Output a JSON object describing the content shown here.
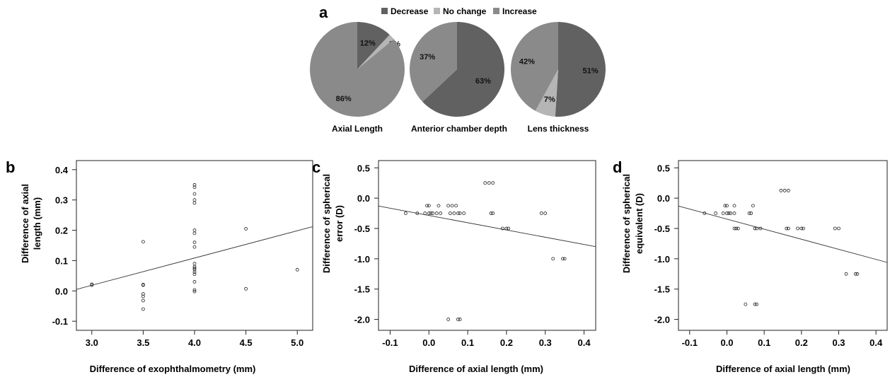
{
  "colors": {
    "decrease": "#616161",
    "no_change": "#b5b5b5",
    "increase": "#8a8a8a",
    "axis": "#222222",
    "marker": "#222222"
  },
  "pie_legend": {
    "entries": [
      {
        "label": "Decrease",
        "color_key": "decrease"
      },
      {
        "label": "No change",
        "color_key": "no_change"
      },
      {
        "label": "Increase",
        "color_key": "increase"
      }
    ]
  },
  "chart_data": [
    {
      "panel": "a",
      "type": "pie",
      "title": "Axial Length",
      "slices": [
        {
          "category": "Decrease",
          "value": 12,
          "label": "12%"
        },
        {
          "category": "No change",
          "value": 2,
          "label": "2%"
        },
        {
          "category": "Increase",
          "value": 86,
          "label": "86%"
        }
      ]
    },
    {
      "panel": "a",
      "type": "pie",
      "title": "Anterior chamber depth",
      "slices": [
        {
          "category": "Decrease",
          "value": 63,
          "label": "63%"
        },
        {
          "category": "No change",
          "value": 0,
          "label": ""
        },
        {
          "category": "Increase",
          "value": 37,
          "label": "37%"
        }
      ]
    },
    {
      "panel": "a",
      "type": "pie",
      "title": "Lens thickness",
      "slices": [
        {
          "category": "Decrease",
          "value": 51,
          "label": "51%"
        },
        {
          "category": "No change",
          "value": 7,
          "label": "7%"
        },
        {
          "category": "Increase",
          "value": 42,
          "label": "42%"
        }
      ]
    },
    {
      "panel": "b",
      "type": "scatter",
      "xlabel": "Difference of exophthalmometry (mm)",
      "ylabel": [
        "Difference of axial",
        "length (mm)"
      ],
      "xlim": [
        2.85,
        5.15
      ],
      "ylim": [
        -0.13,
        0.43
      ],
      "xticks": [
        3.0,
        3.5,
        4.0,
        4.5,
        5.0
      ],
      "xtick_labels": [
        "3.0",
        "3.5",
        "4.0",
        "4.5",
        "5.0"
      ],
      "yticks": [
        -0.1,
        0.0,
        0.1,
        0.2,
        0.3,
        0.4
      ],
      "ytick_labels": [
        "-0.1",
        "0.0",
        "0.1",
        "0.2",
        "0.3",
        "0.4"
      ],
      "points": [
        [
          3.0,
          0.022
        ],
        [
          3.0,
          0.019
        ],
        [
          3.5,
          0.162
        ],
        [
          3.5,
          0.021
        ],
        [
          3.5,
          0.019
        ],
        [
          3.5,
          -0.01
        ],
        [
          3.5,
          -0.018
        ],
        [
          3.5,
          -0.032
        ],
        [
          3.5,
          -0.06
        ],
        [
          4.0,
          0.35
        ],
        [
          4.0,
          0.342
        ],
        [
          4.0,
          0.32
        ],
        [
          4.0,
          0.3
        ],
        [
          4.0,
          0.29
        ],
        [
          4.0,
          0.2
        ],
        [
          4.0,
          0.19
        ],
        [
          4.0,
          0.16
        ],
        [
          4.0,
          0.145
        ],
        [
          4.0,
          0.09
        ],
        [
          4.0,
          0.08
        ],
        [
          4.0,
          0.075
        ],
        [
          4.0,
          0.07
        ],
        [
          4.0,
          0.062
        ],
        [
          4.0,
          0.055
        ],
        [
          4.0,
          0.03
        ],
        [
          4.0,
          0.003
        ],
        [
          4.0,
          -0.002
        ],
        [
          4.5,
          0.205
        ],
        [
          4.5,
          0.007
        ],
        [
          5.0,
          0.07
        ]
      ],
      "fit_line": [
        [
          2.85,
          0.005
        ],
        [
          5.15,
          0.212
        ]
      ]
    },
    {
      "panel": "c",
      "type": "scatter",
      "xlabel": "Difference of axial length (mm)",
      "ylabel": [
        "Difference of spherical",
        "error (D)"
      ],
      "xlim": [
        -0.13,
        0.43
      ],
      "ylim": [
        -2.18,
        0.62
      ],
      "xticks": [
        -0.1,
        0.0,
        0.1,
        0.2,
        0.3,
        0.4
      ],
      "xtick_labels": [
        "-0.1",
        "0.0",
        "0.1",
        "0.2",
        "0.3",
        "0.4"
      ],
      "yticks": [
        0.5,
        0.0,
        -0.5,
        -1.0,
        -1.5,
        -2.0
      ],
      "ytick_labels": [
        "0.5",
        "0.0",
        "-0.5",
        "-1.0",
        "-1.5",
        "-2.0"
      ],
      "points": [
        [
          -0.06,
          -0.25
        ],
        [
          -0.03,
          -0.25
        ],
        [
          -0.01,
          -0.25
        ],
        [
          -0.005,
          -0.125
        ],
        [
          0.0,
          -0.125
        ],
        [
          0.0,
          -0.25
        ],
        [
          0.005,
          -0.25
        ],
        [
          0.01,
          -0.25
        ],
        [
          0.02,
          -0.25
        ],
        [
          0.025,
          -0.125
        ],
        [
          0.03,
          -0.25
        ],
        [
          0.05,
          -0.125
        ],
        [
          0.055,
          -0.25
        ],
        [
          0.06,
          -0.125
        ],
        [
          0.065,
          -0.25
        ],
        [
          0.07,
          -0.125
        ],
        [
          0.075,
          -0.25
        ],
        [
          0.08,
          -0.25
        ],
        [
          0.09,
          -0.25
        ],
        [
          0.145,
          0.25
        ],
        [
          0.155,
          0.25
        ],
        [
          0.165,
          0.25
        ],
        [
          0.16,
          -0.25
        ],
        [
          0.165,
          -0.25
        ],
        [
          0.19,
          -0.5
        ],
        [
          0.2,
          -0.5
        ],
        [
          0.205,
          -0.5
        ],
        [
          0.29,
          -0.25
        ],
        [
          0.3,
          -0.25
        ],
        [
          0.32,
          -1.0
        ],
        [
          0.345,
          -1.0
        ],
        [
          0.35,
          -1.0
        ],
        [
          0.05,
          -2.0
        ],
        [
          0.075,
          -2.0
        ],
        [
          0.08,
          -2.0
        ]
      ],
      "fit_line": [
        [
          -0.13,
          -0.13
        ],
        [
          0.43,
          -0.8
        ]
      ]
    },
    {
      "panel": "d",
      "type": "scatter",
      "xlabel": "Difference of axial length (mm)",
      "ylabel": [
        "Difference of spherical",
        "equivalent (D)"
      ],
      "xlim": [
        -0.13,
        0.43
      ],
      "ylim": [
        -2.18,
        0.62
      ],
      "xticks": [
        -0.1,
        0.0,
        0.1,
        0.2,
        0.3,
        0.4
      ],
      "xtick_labels": [
        "-0.1",
        "0.0",
        "0.1",
        "0.2",
        "0.3",
        "0.4"
      ],
      "yticks": [
        0.5,
        0.0,
        -0.5,
        -1.0,
        -1.5,
        -2.0
      ],
      "ytick_labels": [
        "0.5",
        "0.0",
        "-0.5",
        "-1.0",
        "-1.5",
        "-2.0"
      ],
      "points": [
        [
          -0.06,
          -0.25
        ],
        [
          -0.03,
          -0.25
        ],
        [
          -0.01,
          -0.25
        ],
        [
          -0.005,
          -0.125
        ],
        [
          0.0,
          -0.125
        ],
        [
          0.0,
          -0.25
        ],
        [
          0.005,
          -0.25
        ],
        [
          0.01,
          -0.25
        ],
        [
          0.02,
          -0.125
        ],
        [
          0.02,
          -0.25
        ],
        [
          0.02,
          -0.5
        ],
        [
          0.025,
          -0.5
        ],
        [
          0.03,
          -0.5
        ],
        [
          0.06,
          -0.25
        ],
        [
          0.065,
          -0.25
        ],
        [
          0.07,
          -0.125
        ],
        [
          0.075,
          -0.5
        ],
        [
          0.08,
          -0.5
        ],
        [
          0.09,
          -0.5
        ],
        [
          0.145,
          0.125
        ],
        [
          0.155,
          0.125
        ],
        [
          0.165,
          0.125
        ],
        [
          0.16,
          -0.5
        ],
        [
          0.165,
          -0.5
        ],
        [
          0.19,
          -0.5
        ],
        [
          0.2,
          -0.5
        ],
        [
          0.205,
          -0.5
        ],
        [
          0.29,
          -0.5
        ],
        [
          0.3,
          -0.5
        ],
        [
          0.32,
          -1.25
        ],
        [
          0.345,
          -1.25
        ],
        [
          0.35,
          -1.25
        ],
        [
          0.05,
          -1.75
        ],
        [
          0.075,
          -1.75
        ],
        [
          0.08,
          -1.75
        ]
      ],
      "fit_line": [
        [
          -0.13,
          -0.13
        ],
        [
          0.43,
          -1.06
        ]
      ]
    }
  ],
  "panel_labels": {
    "a": "a",
    "b": "b",
    "c": "c",
    "d": "d"
  }
}
